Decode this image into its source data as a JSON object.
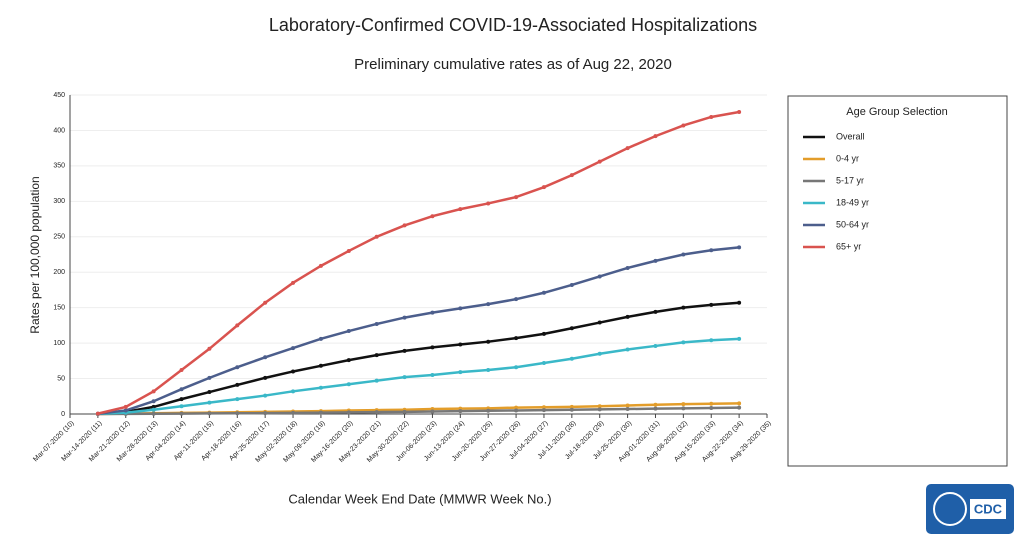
{
  "chart_data": {
    "type": "line",
    "title": "Laboratory-Confirmed COVID-19-Associated Hospitalizations",
    "subtitle": "Preliminary cumulative rates as of Aug 22, 2020",
    "y_label": "Rates per 100,000 population",
    "x_label": "Calendar Week End Date (MMWR Week No.)",
    "legend_title": "Age Group Selection",
    "logo": "CDC",
    "categories": [
      "Mar-07-2020 (10)",
      "Mar-14-2020 (11)",
      "Mar-21-2020 (12)",
      "Mar-28-2020 (13)",
      "Apr-04-2020 (14)",
      "Apr-11-2020 (15)",
      "Apr-18-2020 (16)",
      "Apr-25-2020 (17)",
      "May-02-2020 (18)",
      "May-09-2020 (19)",
      "May-16-2020 (20)",
      "May-23-2020 (21)",
      "May-30-2020 (22)",
      "Jun-06-2020 (23)",
      "Jun-13-2020 (24)",
      "Jun-20-2020 (25)",
      "Jun-27-2020 (26)",
      "Jul-04-2020 (27)",
      "Jul-11-2020 (28)",
      "Jul-18-2020 (29)",
      "Jul-25-2020 (30)",
      "Aug-01-2020 (31)",
      "Aug-08-2020 (32)",
      "Aug-15-2020 (33)",
      "Aug-22-2020 (34)",
      "Aug-29-2020 (35)"
    ],
    "series": [
      {
        "name": "Overall",
        "color": "#111111",
        "values": [
          null,
          0.2,
          3,
          10,
          21,
          31,
          41,
          51,
          60,
          68,
          76,
          83,
          89,
          94,
          98,
          102,
          107,
          113,
          121,
          129,
          137,
          144,
          150,
          154,
          157,
          null
        ]
      },
      {
        "name": "0-4 yr",
        "color": "#e39d2a",
        "values": [
          null,
          0,
          0.5,
          1,
          1.5,
          2,
          2.5,
          3,
          3.5,
          4,
          5,
          5.5,
          6,
          7,
          7.5,
          8,
          9,
          9.5,
          10,
          11,
          12,
          13,
          14,
          14.5,
          15,
          null
        ]
      },
      {
        "name": "5-17 yr",
        "color": "#777777",
        "values": [
          null,
          0,
          0.2,
          0.4,
          0.6,
          0.8,
          1,
          1.2,
          1.5,
          2,
          2.3,
          2.7,
          3,
          3.5,
          4,
          4.5,
          5,
          5.5,
          6,
          6.5,
          7,
          7.5,
          8,
          8.5,
          9,
          null
        ]
      },
      {
        "name": "18-49 yr",
        "color": "#3ab8c8",
        "values": [
          null,
          0.1,
          2,
          6,
          11,
          16,
          21,
          26,
          32,
          37,
          42,
          47,
          52,
          55,
          59,
          62,
          66,
          72,
          78,
          85,
          91,
          96,
          101,
          104,
          106,
          null
        ]
      },
      {
        "name": "50-64 yr",
        "color": "#4c5e8c",
        "values": [
          null,
          0.3,
          5,
          18,
          35,
          51,
          66,
          80,
          93,
          106,
          117,
          127,
          136,
          143,
          149,
          155,
          162,
          171,
          182,
          194,
          206,
          216,
          225,
          231,
          235,
          null
        ]
      },
      {
        "name": "65+ yr",
        "color": "#d9534f",
        "values": [
          null,
          0.5,
          10,
          32,
          62,
          92,
          125,
          157,
          185,
          209,
          230,
          250,
          266,
          279,
          289,
          297,
          306,
          320,
          337,
          356,
          375,
          392,
          407,
          419,
          426,
          null
        ]
      }
    ],
    "ylim": [
      0,
      450
    ],
    "yticks": [
      0,
      50,
      100,
      150,
      200,
      250,
      300,
      350,
      400,
      450
    ],
    "grid": true
  }
}
